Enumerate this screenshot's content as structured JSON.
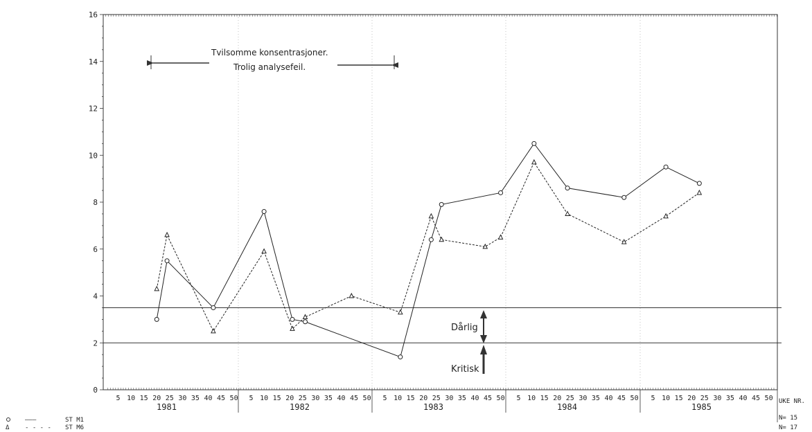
{
  "chart_data": {
    "type": "line",
    "xlabel": "UKE NR.",
    "ylim": [
      0,
      16
    ],
    "yticks": [
      "0",
      "2",
      "4",
      "6",
      "8",
      "10",
      "12",
      "14",
      "16"
    ],
    "year_labels": [
      "1981",
      "1982",
      "1983",
      "1984",
      "1985"
    ],
    "week_ticks": [
      "5",
      "10",
      "15",
      "20",
      "25",
      "30",
      "35",
      "40",
      "45",
      "50"
    ],
    "series": [
      {
        "name": "ST M1",
        "style": "solid",
        "marker": "circle",
        "points": [
          {
            "year": 1981,
            "week": 20,
            "value": 3.0
          },
          {
            "year": 1981,
            "week": 24,
            "value": 5.5
          },
          {
            "year": 1981,
            "week": 42,
            "value": 3.5
          },
          {
            "year": 1982,
            "week": 10,
            "value": 7.6
          },
          {
            "year": 1982,
            "week": 21,
            "value": 3.0
          },
          {
            "year": 1982,
            "week": 26,
            "value": 2.9
          },
          {
            "year": 1983,
            "week": 11,
            "value": 1.4
          },
          {
            "year": 1983,
            "week": 23,
            "value": 6.4
          },
          {
            "year": 1983,
            "week": 27,
            "value": 7.9
          },
          {
            "year": 1983,
            "week": 50,
            "value": 8.4
          },
          {
            "year": 1984,
            "week": 11,
            "value": 10.5
          },
          {
            "year": 1984,
            "week": 24,
            "value": 8.6
          },
          {
            "year": 1984,
            "week": 46,
            "value": 8.2
          },
          {
            "year": 1985,
            "week": 10,
            "value": 9.5
          },
          {
            "year": 1985,
            "week": 23,
            "value": 8.8
          }
        ]
      },
      {
        "name": "ST M6",
        "style": "dashed",
        "marker": "triangle",
        "points": [
          {
            "year": 1981,
            "week": 20,
            "value": 4.3
          },
          {
            "year": 1981,
            "week": 24,
            "value": 6.6
          },
          {
            "year": 1981,
            "week": 42,
            "value": 2.5
          },
          {
            "year": 1982,
            "week": 10,
            "value": 5.9
          },
          {
            "year": 1982,
            "week": 21,
            "value": 2.6
          },
          {
            "year": 1982,
            "week": 26,
            "value": 3.1
          },
          {
            "year": 1982,
            "week": 44,
            "value": 4.0
          },
          {
            "year": 1983,
            "week": 11,
            "value": 3.3
          },
          {
            "year": 1983,
            "week": 23,
            "value": 7.4
          },
          {
            "year": 1983,
            "week": 27,
            "value": 6.4
          },
          {
            "year": 1983,
            "week": 44,
            "value": 6.1
          },
          {
            "year": 1983,
            "week": 50,
            "value": 6.5
          },
          {
            "year": 1984,
            "week": 11,
            "value": 9.7
          },
          {
            "year": 1984,
            "week": 24,
            "value": 7.5
          },
          {
            "year": 1984,
            "week": 46,
            "value": 6.3
          },
          {
            "year": 1985,
            "week": 10,
            "value": 7.4
          },
          {
            "year": 1985,
            "week": 23,
            "value": 8.4
          }
        ]
      }
    ],
    "reference_lines": [
      3.5,
      2.0
    ],
    "zones": [
      {
        "label": "Dårlig"
      },
      {
        "label": "Kritisk"
      }
    ],
    "annotation": {
      "line1": "Tvilsomme konsentrasjoner.",
      "line2": "Trolig analysefeil.",
      "from": {
        "year": 1981,
        "week": 20
      },
      "to": {
        "year": 1983,
        "week": 12
      },
      "value": 14
    },
    "legend": [
      {
        "symbol": "o",
        "line": "———",
        "label": "ST M1"
      },
      {
        "symbol": "Δ",
        "line": "- - - -",
        "label": "ST M6"
      }
    ],
    "counts": [
      "N= 15",
      "N= 17"
    ]
  }
}
